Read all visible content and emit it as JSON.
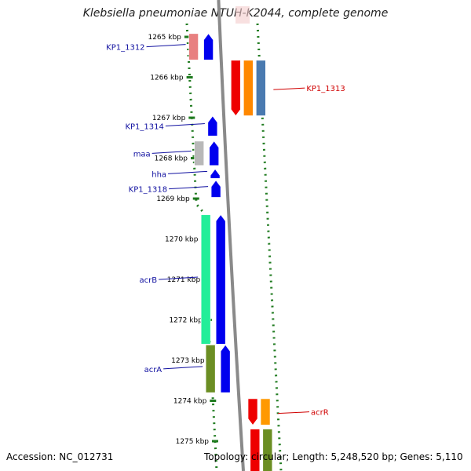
{
  "title": "Klebsiella pneumoniae NTUH-K2044, complete genome",
  "footer": {
    "accession": "Accession: NC_012731",
    "topology": "Topology: circular; Length: 5,248,520 bp; Genes: 5,110"
  },
  "colors": {
    "backbone": "#8a8a8a",
    "ticks": "#1e7a1e",
    "forward_label": "#1010a0",
    "reverse_label": "#d00000"
  },
  "scale": {
    "unit": "kbp",
    "ticks": [
      {
        "kbp": 1265,
        "label": "1265 kbp"
      },
      {
        "kbp": 1266,
        "label": "1266 kbp"
      },
      {
        "kbp": 1267,
        "label": "1267 kbp"
      },
      {
        "kbp": 1268,
        "label": "1268 kbp"
      },
      {
        "kbp": 1269,
        "label": "1269 kbp"
      },
      {
        "kbp": 1270,
        "label": "1270 kbp"
      },
      {
        "kbp": 1271,
        "label": "1271 kbp"
      },
      {
        "kbp": 1272,
        "label": "1272 kbp"
      },
      {
        "kbp": 1273,
        "label": "1273 kbp"
      },
      {
        "kbp": 1274,
        "label": "1274 kbp"
      },
      {
        "kbp": 1275,
        "label": "1275 kbp"
      }
    ]
  },
  "genes": [
    {
      "label": "KP1_1312",
      "strand": "forward",
      "start_kbp": 1264.92,
      "end_kbp": 1265.57,
      "side": "left"
    },
    {
      "label": "KP1_1313",
      "strand": "reverse",
      "start_kbp": 1265.58,
      "end_kbp": 1266.95,
      "side": "right"
    },
    {
      "label": "KP1_1314",
      "strand": "forward",
      "start_kbp": 1266.96,
      "end_kbp": 1267.45,
      "side": "left"
    },
    {
      "label": "maa",
      "strand": "forward",
      "start_kbp": 1267.58,
      "end_kbp": 1268.18,
      "side": "left"
    },
    {
      "label": "hha",
      "strand": "forward",
      "start_kbp": 1268.27,
      "end_kbp": 1268.5,
      "side": "left"
    },
    {
      "label": "KP1_1318",
      "strand": "forward",
      "start_kbp": 1268.55,
      "end_kbp": 1268.97,
      "side": "left"
    },
    {
      "label": "acrB",
      "strand": "forward",
      "start_kbp": 1269.4,
      "end_kbp": 1272.6,
      "side": "left"
    },
    {
      "label": "acrA",
      "strand": "forward",
      "start_kbp": 1272.62,
      "end_kbp": 1273.8,
      "side": "left"
    },
    {
      "label": "acrR",
      "strand": "reverse",
      "start_kbp": 1273.95,
      "end_kbp": 1274.6,
      "side": "right"
    },
    {
      "label": "",
      "strand": "reverse",
      "start_kbp": 1274.7,
      "end_kbp": 1275.9,
      "side": "right"
    }
  ]
}
